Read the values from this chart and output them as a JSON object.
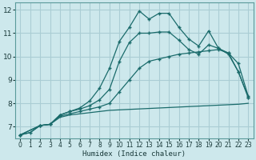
{
  "xlabel": "Humidex (Indice chaleur)",
  "bg_color": "#cde8ec",
  "grid_color": "#aacdd4",
  "line_color": "#1a6b6b",
  "xlim": [
    -0.5,
    23.5
  ],
  "ylim": [
    6.5,
    12.3
  ],
  "xticks": [
    0,
    1,
    2,
    3,
    4,
    5,
    6,
    7,
    8,
    9,
    10,
    11,
    12,
    13,
    14,
    15,
    16,
    17,
    18,
    19,
    20,
    21,
    22,
    23
  ],
  "yticks": [
    7,
    8,
    9,
    10,
    11,
    12
  ],
  "series": [
    {
      "x": [
        0,
        1,
        2,
        3,
        4,
        5,
        6,
        7,
        8,
        9,
        10,
        11,
        12,
        13,
        14,
        15,
        16,
        17,
        18,
        19,
        20,
        21,
        22,
        23
      ],
      "y": [
        6.65,
        6.75,
        7.05,
        7.1,
        7.4,
        7.5,
        7.55,
        7.6,
        7.65,
        7.7,
        7.72,
        7.74,
        7.76,
        7.78,
        7.8,
        7.82,
        7.84,
        7.86,
        7.88,
        7.9,
        7.92,
        7.94,
        7.96,
        8.0
      ],
      "marker": false
    },
    {
      "x": [
        0,
        2,
        3,
        4,
        5,
        6,
        7,
        8,
        9,
        10,
        11,
        12,
        13,
        14,
        15,
        16,
        17,
        18,
        19,
        20,
        21,
        22,
        23
      ],
      "y": [
        6.65,
        7.05,
        7.1,
        7.45,
        7.55,
        7.65,
        7.75,
        7.85,
        8.0,
        8.5,
        9.0,
        9.5,
        9.8,
        9.9,
        10.0,
        10.1,
        10.15,
        10.2,
        10.25,
        10.3,
        10.15,
        9.7,
        8.3
      ],
      "marker": true
    },
    {
      "x": [
        0,
        2,
        3,
        4,
        5,
        6,
        7,
        8,
        9,
        10,
        11,
        12,
        13,
        14,
        15,
        16,
        17,
        18,
        19,
        20,
        21,
        22,
        23
      ],
      "y": [
        6.65,
        7.05,
        7.1,
        7.5,
        7.65,
        7.75,
        7.9,
        8.15,
        8.6,
        9.8,
        10.6,
        11.0,
        11.0,
        11.05,
        11.05,
        10.7,
        10.3,
        10.1,
        10.5,
        10.35,
        10.15,
        9.35,
        8.25
      ],
      "marker": true
    },
    {
      "x": [
        0,
        1,
        2,
        3,
        4,
        5,
        6,
        7,
        8,
        9,
        10,
        11,
        12,
        13,
        14,
        15,
        16,
        17,
        18,
        19,
        20,
        21,
        22,
        23
      ],
      "y": [
        6.65,
        6.75,
        7.05,
        7.1,
        7.5,
        7.65,
        7.8,
        8.1,
        8.65,
        9.5,
        10.65,
        11.25,
        11.95,
        11.6,
        11.85,
        11.85,
        11.25,
        10.75,
        10.45,
        11.1,
        10.35,
        10.1,
        9.35,
        8.25
      ],
      "marker": true
    }
  ]
}
